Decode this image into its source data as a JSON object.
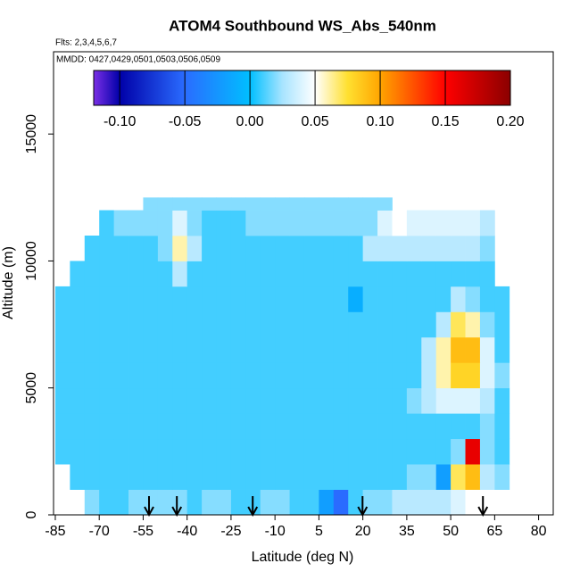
{
  "chart_data": {
    "type": "heatmap",
    "title": "ATOM4 Southbound WS_Abs_540nm",
    "subtitle": "Flts: 2,3,4,5,6,7",
    "annotation": "MMDD: 0427,0429,0501,0503,0506,0509",
    "x_label": "Latitude (deg N)",
    "y_label": "Altitude (m)",
    "xlim": [
      -85.6,
      85
    ],
    "ylim": [
      0,
      18240
    ],
    "xticks": [
      -85,
      -70,
      -55,
      -40,
      -25,
      -10,
      5,
      20,
      35,
      50,
      65,
      80
    ],
    "yticks": [
      0,
      5000,
      10000,
      15000
    ],
    "colorbar_lim": [
      -0.12,
      0.2
    ],
    "colorbar_ticks": [
      {
        "value": -0.1,
        "label": "-0.10"
      },
      -0.05,
      {
        "value": 0,
        "label": "0.00"
      },
      0.05,
      {
        "value": 0.1,
        "label": "0.10"
      },
      0.15,
      {
        "value": 0.2,
        "label": "0.20"
      }
    ],
    "colorscale": [
      {
        "value": -0.12,
        "color": "#7b2fe6"
      },
      {
        "value": -0.1,
        "color": "#0000a8"
      },
      {
        "value": -0.05,
        "color": "#2a6cff"
      },
      {
        "value": 0,
        "color": "#00bfff"
      },
      {
        "value": 0.025,
        "color": "#a8e4ff"
      },
      {
        "value": 0.05,
        "color": "#ffffff"
      },
      {
        "value": 0.075,
        "color": "#ffe030"
      },
      {
        "value": 0.1,
        "color": "#ffa500"
      },
      {
        "value": 0.15,
        "color": "#ff0000"
      },
      {
        "value": 0.2,
        "color": "#8b0000"
      }
    ],
    "lat_edges": [
      -85,
      -80,
      -75,
      -70,
      -65,
      -60,
      -55,
      -50,
      -45,
      -40,
      -35,
      -30,
      -25,
      -20,
      -15,
      -10,
      -5,
      0,
      5,
      10,
      15,
      20,
      25,
      30,
      35,
      40,
      45,
      50,
      55,
      60,
      65,
      70,
      75
    ],
    "alt_edges": [
      0,
      1000,
      2000,
      3000,
      4000,
      5000,
      6000,
      7000,
      8000,
      9000,
      10000,
      11000,
      12000,
      12500
    ],
    "z": [
      [
        null,
        null,
        0.02,
        0.01,
        0.01,
        0.02,
        0.02,
        0.02,
        0.02,
        0.01,
        0.02,
        0.02,
        0.01,
        0.01,
        0.02,
        0.02,
        0.01,
        0.01,
        -0.02,
        -0.05,
        0.01,
        0.02,
        0.02,
        0.03,
        0.03,
        0.03,
        0.03,
        0.04,
        0.05,
        0.05,
        0.05,
        null
      ],
      [
        null,
        0.01,
        0.01,
        0.01,
        0.01,
        0.01,
        0.01,
        0.01,
        0.01,
        0.01,
        0.01,
        0.01,
        0.01,
        0.01,
        0.01,
        0.01,
        0.01,
        0.01,
        0.01,
        0.01,
        0.01,
        0.01,
        0.01,
        0.01,
        0.02,
        0.02,
        -0.02,
        0.07,
        0.09,
        0.03,
        0.02,
        null
      ],
      [
        0.01,
        0.01,
        0.01,
        0.01,
        0.01,
        0.01,
        0.01,
        0.01,
        0.01,
        0.01,
        0.01,
        0.01,
        0.01,
        0.01,
        0.01,
        0.01,
        0.01,
        0.01,
        0.01,
        0.01,
        0.01,
        0.01,
        0.01,
        0.01,
        0.01,
        0.01,
        0.01,
        0.02,
        0.16,
        0.02,
        0.01,
        null
      ],
      [
        0.01,
        0.01,
        0.01,
        0.01,
        0.01,
        0.01,
        0.01,
        0.01,
        0.01,
        0.01,
        0.01,
        0.01,
        0.01,
        0.01,
        0.01,
        0.01,
        0.01,
        0.01,
        0.01,
        0.01,
        0.01,
        0.01,
        0.01,
        0.01,
        0.01,
        0.01,
        0.01,
        0.01,
        0.01,
        0.02,
        0.01,
        null
      ],
      [
        0.01,
        0.01,
        0.01,
        0.01,
        0.01,
        0.01,
        0.01,
        0.01,
        0.01,
        0.01,
        0.01,
        0.01,
        0.01,
        0.01,
        0.01,
        0.01,
        0.01,
        0.01,
        0.01,
        0.01,
        0.01,
        0.01,
        0.01,
        0.01,
        0.02,
        0.03,
        0.04,
        0.04,
        0.04,
        0.03,
        0.01,
        null
      ],
      [
        0.01,
        0.01,
        0.01,
        0.01,
        0.01,
        0.01,
        0.01,
        0.01,
        0.01,
        0.01,
        0.01,
        0.01,
        0.01,
        0.01,
        0.01,
        0.01,
        0.01,
        0.01,
        0.01,
        0.01,
        0.01,
        0.01,
        0.01,
        0.01,
        0.01,
        0.03,
        0.06,
        0.08,
        0.08,
        0.04,
        0.02,
        null
      ],
      [
        0.01,
        0.01,
        0.01,
        0.01,
        0.01,
        0.01,
        0.01,
        0.01,
        0.01,
        0.01,
        0.01,
        0.01,
        0.01,
        0.01,
        0.01,
        0.01,
        0.01,
        0.01,
        0.01,
        0.01,
        0.01,
        0.01,
        0.01,
        0.01,
        0.01,
        0.03,
        0.06,
        0.09,
        0.09,
        0.04,
        0.01,
        null
      ],
      [
        0.01,
        0.01,
        0.01,
        0.01,
        0.01,
        0.01,
        0.01,
        0.01,
        0.01,
        0.01,
        0.01,
        0.01,
        0.01,
        0.01,
        0.01,
        0.01,
        0.01,
        0.01,
        0.01,
        0.01,
        0.01,
        0.01,
        0.01,
        0.01,
        0.01,
        0.01,
        0.03,
        0.07,
        0.06,
        0.02,
        0.01,
        null
      ],
      [
        0.01,
        0.01,
        0.01,
        0.01,
        0.01,
        0.01,
        0.01,
        0.01,
        0.01,
        0.01,
        0.01,
        0.01,
        0.01,
        0.01,
        0.01,
        0.01,
        0.01,
        0.01,
        0.01,
        0.01,
        -0.01,
        0.01,
        0.01,
        0.01,
        0.01,
        0.01,
        0.01,
        0.03,
        0.02,
        0.01,
        0.01,
        null
      ],
      [
        null,
        0.01,
        0.01,
        0.01,
        0.01,
        0.01,
        0.01,
        0.01,
        0.03,
        0.01,
        0.01,
        0.01,
        0.01,
        0.01,
        0.01,
        0.01,
        0.01,
        0.01,
        0.01,
        0.01,
        0.01,
        0.01,
        0.01,
        0.01,
        0.01,
        0.01,
        0.01,
        0.01,
        0.01,
        0.01,
        null,
        null
      ],
      [
        null,
        null,
        0.01,
        0.01,
        0.01,
        0.01,
        0.01,
        0.02,
        0.06,
        0.03,
        0.01,
        0.01,
        0.01,
        0.01,
        0.01,
        0.01,
        0.01,
        0.01,
        0.01,
        0.01,
        0.01,
        0.03,
        0.03,
        0.03,
        0.03,
        0.03,
        0.03,
        0.03,
        0.03,
        0.02,
        null,
        null
      ],
      [
        null,
        null,
        null,
        0.01,
        0.02,
        0.02,
        0.02,
        0.02,
        0.04,
        0.02,
        0.01,
        0.01,
        0.01,
        0.02,
        0.02,
        0.02,
        0.02,
        0.02,
        0.02,
        0.02,
        0.02,
        0.02,
        0.04,
        0.05,
        0.04,
        0.04,
        0.04,
        0.04,
        0.04,
        0.03,
        null,
        null
      ],
      [
        null,
        null,
        null,
        null,
        null,
        null,
        0.02,
        0.02,
        0.02,
        0.02,
        0.02,
        0.02,
        0.02,
        0.02,
        0.02,
        0.02,
        0.02,
        0.02,
        0.02,
        0.02,
        0.02,
        0.02,
        0.02,
        null,
        null,
        null,
        null,
        null,
        null,
        null,
        null,
        null
      ]
    ],
    "arrows": [
      -53,
      -43.5,
      -17.6,
      19.9,
      61
    ]
  }
}
